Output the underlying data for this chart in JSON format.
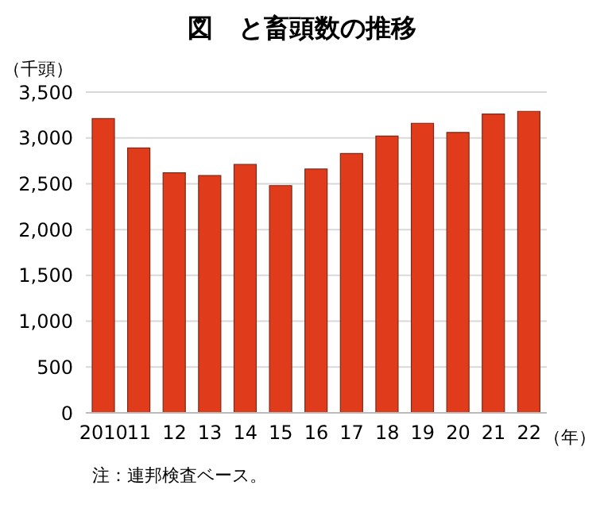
{
  "chart_data": {
    "type": "bar",
    "title": "図　と畜頭数の推移",
    "ylabel": "（千頭）",
    "xlabel": "（年）",
    "categories": [
      "2010",
      "11",
      "12",
      "13",
      "14",
      "15",
      "16",
      "17",
      "18",
      "19",
      "20",
      "21",
      "22"
    ],
    "values": [
      3210,
      2890,
      2620,
      2590,
      2710,
      2480,
      2660,
      2830,
      3020,
      3160,
      3060,
      3260,
      3290
    ],
    "color": "#e03c1c",
    "ylim": [
      0,
      3500
    ],
    "yticks": [
      {
        "value": 0,
        "label": "0"
      },
      {
        "value": 500,
        "label": "500"
      },
      {
        "value": 1000,
        "label": "1,000"
      },
      {
        "value": 1500,
        "label": "1,500"
      },
      {
        "value": 2000,
        "label": "2,000"
      },
      {
        "value": 2500,
        "label": "2,500"
      },
      {
        "value": 3000,
        "label": "3,000"
      },
      {
        "value": 3500,
        "label": "3,500"
      }
    ],
    "grid": "y",
    "annotations": [
      "注：連邦検査ベース。"
    ]
  }
}
